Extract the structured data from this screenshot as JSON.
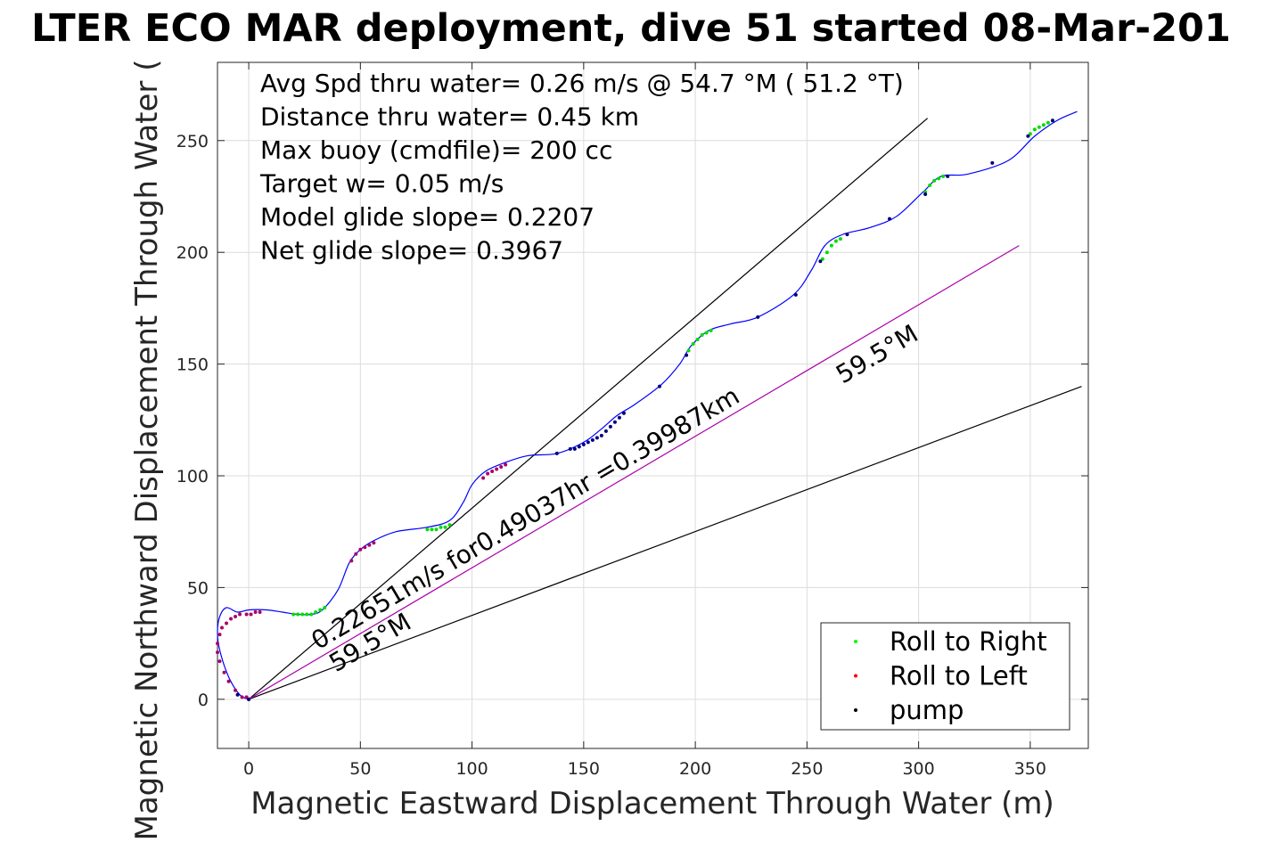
{
  "title": "LTER ECO MAR deployment, dive 51 started 08-Mar-201",
  "chart_data": {
    "type": "line",
    "xlabel": "Magnetic Eastward Displacement Through Water (m)",
    "ylabel": "Magnetic Northward Displacement Through Water (",
    "xlim": [
      -14,
      376
    ],
    "ylim": [
      -22,
      285
    ],
    "xticks": [
      0,
      50,
      100,
      150,
      200,
      250,
      300,
      350
    ],
    "yticks": [
      0,
      50,
      100,
      150,
      200,
      250
    ],
    "grid": true,
    "stats": [
      "Avg Spd thru water=  0.26 m/s @  54.7 °M ( 51.2 °T)",
      "Distance thru water=  0.45 km",
      "Max buoy (cmdfile)= 200 cc",
      "Target w= 0.05 m/s",
      "Model glide slope= 0.2207",
      "Net glide slope= 0.3967"
    ],
    "track": {
      "name": "track",
      "color": "#0000ff",
      "x": [
        0,
        -4,
        -9,
        -13,
        -14,
        -13,
        -10,
        -5,
        0,
        8,
        15,
        22,
        28,
        33,
        40,
        45,
        50,
        56,
        66,
        80,
        90,
        96,
        100,
        106,
        115,
        125,
        138,
        150,
        158,
        165,
        173,
        185,
        193,
        198,
        206,
        216,
        228,
        244,
        252,
        258,
        266,
        278,
        290,
        302,
        310,
        322,
        340,
        352,
        362,
        371
      ],
      "y": [
        0,
        2,
        10,
        22,
        30,
        37,
        41,
        39,
        40,
        40,
        39,
        38,
        38,
        40,
        49,
        61,
        67,
        71,
        75,
        77,
        80,
        88,
        96,
        102,
        106,
        109,
        110,
        115,
        121,
        127,
        132,
        141,
        150,
        158,
        165,
        168,
        171,
        181,
        192,
        203,
        208,
        211,
        216,
        227,
        234,
        235,
        241,
        252,
        259,
        263
      ]
    },
    "series": [
      {
        "name": "Roll to Right",
        "color": "#00ff00",
        "x": [
          20,
          22,
          24,
          26,
          28,
          30,
          32,
          34,
          80,
          82,
          84,
          86,
          88,
          90,
          197,
          199,
          201,
          203,
          205,
          207,
          257,
          259,
          261,
          263,
          265,
          303,
          305,
          307,
          309,
          311,
          350,
          352,
          354,
          356,
          358,
          360
        ],
        "y": [
          38,
          38,
          38,
          38,
          38,
          39,
          40,
          41,
          76,
          76,
          76,
          77,
          77,
          78,
          156,
          159,
          161,
          163,
          164,
          165,
          197,
          200,
          203,
          205,
          206,
          227,
          230,
          232,
          233,
          234,
          253,
          255,
          256,
          257,
          258,
          259
        ]
      },
      {
        "name": "Roll to Left",
        "color": "#ff0000",
        "x": [
          -3,
          -6,
          -9,
          -11,
          -13,
          -14,
          -14,
          -13,
          -12,
          -10,
          -8,
          -6,
          -4,
          -1,
          1,
          3,
          5,
          46,
          48,
          50,
          52,
          54,
          56,
          105,
          107,
          109,
          111,
          113,
          115,
          0,
          -1
        ],
        "y": [
          1,
          4,
          8,
          12,
          17,
          21,
          25,
          29,
          32,
          34,
          36,
          37,
          38,
          38,
          38,
          39,
          39,
          62,
          65,
          67,
          68,
          69,
          70,
          99,
          101,
          102,
          103,
          104,
          105,
          0,
          1
        ]
      },
      {
        "name": "pump",
        "color": "#000000",
        "x": [
          -5,
          0,
          138,
          144,
          146,
          148,
          150,
          152,
          154,
          156,
          158,
          160,
          162,
          164,
          166,
          168,
          184,
          196,
          228,
          245,
          287,
          313,
          333,
          349,
          360,
          256,
          268,
          303
        ],
        "y": [
          2,
          0,
          110,
          112,
          112,
          113,
          114,
          115,
          116,
          117,
          118,
          120,
          122,
          124,
          126,
          128,
          140,
          154,
          171,
          181,
          215,
          234,
          240,
          252,
          259,
          196,
          208,
          226
        ]
      }
    ],
    "reference_lines": [
      {
        "x": [
          0,
          304
        ],
        "y": [
          0,
          260
        ],
        "color": "#000000"
      },
      {
        "x": [
          0,
          373
        ],
        "y": [
          0,
          140
        ],
        "color": "#000000"
      },
      {
        "x": [
          0,
          345
        ],
        "y": [
          0,
          203
        ],
        "color": "#aa00aa"
      }
    ],
    "annotations": [
      {
        "text": "0.22651m/s for0.49037hr =0.39987km",
        "x": 31,
        "y": 22,
        "angle": 30.5
      },
      {
        "text": "59.5°M",
        "x": 39,
        "y": 12,
        "angle": 30.5
      },
      {
        "text": "59.5°M",
        "x": 266,
        "y": 141,
        "angle": 30.5
      }
    ],
    "legend": {
      "position": "bottom-right",
      "entries": [
        "Roll to Right",
        "Roll to Left",
        "pump"
      ]
    }
  }
}
